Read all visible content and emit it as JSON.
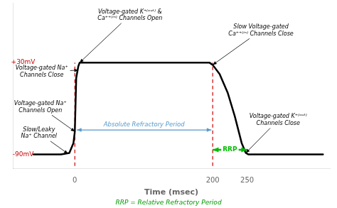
{
  "chart_data": {
    "type": "line",
    "x": [
      -60,
      -20,
      -8,
      -2,
      0,
      2,
      5,
      7,
      195,
      200,
      210,
      222,
      232,
      242,
      248,
      252,
      310,
      360
    ],
    "values": [
      -90,
      -90,
      -88,
      -75,
      -60,
      10,
      25,
      30,
      30,
      27,
      15,
      -10,
      -40,
      -75,
      -88,
      -90,
      -90,
      -90
    ],
    "color": "#000000",
    "xlim": [
      -90,
      370
    ],
    "ylim": [
      -108,
      108
    ],
    "xticks": [
      0,
      200,
      250
    ],
    "tick_labels": "x",
    "grid": false,
    "xlabel": "Time (msec)",
    "vlines": {
      "x": [
        0,
        200
      ],
      "y": [
        -105,
        30
      ],
      "color": "#cc0000",
      "line_style": "dashed"
    },
    "ranges": [
      {
        "text": "Absolute Refractory Period",
        "x": [
          3,
          198
        ],
        "y": -58,
        "color": "#5599cc"
      },
      {
        "text": "RRP",
        "x": [
          200,
          250
        ],
        "y": -84,
        "color": "#00bb00"
      }
    ],
    "annotations": [
      {
        "text": "Voltage-gated K⁺⁽ᵒᵘᵗ⁾ &\nCa⁺⁺⁽ⁱⁿ⁾ Channels Open",
        "xy": [
          7,
          30
        ],
        "xytext": [
          80,
          92
        ]
      },
      {
        "text": "Slow Voltage-gated\nCa⁺⁺⁽ⁱⁿ⁾ Channels Close",
        "xy": [
          200,
          27
        ],
        "xytext": [
          270,
          72
        ]
      },
      {
        "text": "Voltage-gated Na⁺\nChannels Close",
        "xy": [
          5,
          20
        ],
        "xytext": [
          -48,
          18
        ]
      },
      {
        "text": "Voltage-gated Na⁺\nChannels Open",
        "xy": [
          0,
          -60
        ],
        "xytext": [
          -50,
          -28
        ]
      },
      {
        "text": "Slow/Leaky\nNa⁺ Channel",
        "xy": [
          -10,
          -89
        ],
        "xytext": [
          -52,
          -62
        ]
      },
      {
        "text": "Voltage-gated K⁺⁽ᵒᵘᵗ⁾\nChannels Close",
        "xy": [
          248,
          -88
        ],
        "xytext": [
          295,
          -45
        ]
      }
    ],
    "voltage_labels": [
      {
        "text": "+30mV",
        "x": -75,
        "y": 30,
        "color": "#cc0000"
      },
      {
        "text": "-90mV",
        "x": -75,
        "y": -90,
        "color": "#cc0000"
      }
    ],
    "footnote": {
      "text": "RRP = Relative Refractory Period",
      "color": "#009900"
    }
  }
}
